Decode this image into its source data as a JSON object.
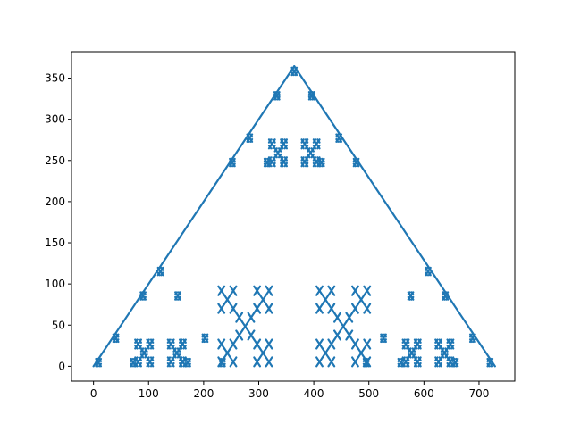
{
  "chart_data": {
    "type": "scatter",
    "title": "",
    "xlabel": "",
    "ylabel": "",
    "xlim": [
      -40,
      765
    ],
    "ylim": [
      -18,
      382
    ],
    "grid": false,
    "legend": "none",
    "x_ticks": [
      0,
      100,
      200,
      300,
      400,
      500,
      600,
      700
    ],
    "x_tick_labels": [
      "0",
      "100",
      "200",
      "300",
      "400",
      "500",
      "600",
      "700"
    ],
    "y_ticks": [
      0,
      50,
      100,
      150,
      200,
      250,
      300,
      350
    ],
    "y_tick_labels": [
      "0",
      "50",
      "100",
      "150",
      "200",
      "250",
      "300",
      "350"
    ],
    "fractal": {
      "description": "Line plot of a recursive fractal pattern forming a triangle",
      "base_x": 0,
      "base_y": 0,
      "width": 729,
      "height": 364.5,
      "outer_edges": [
        {
          "x": [
            0,
            364.5,
            729
          ],
          "y": [
            0,
            364.5,
            0
          ]
        }
      ]
    },
    "series": [
      {
        "color": "#1f77b4"
      }
    ]
  }
}
